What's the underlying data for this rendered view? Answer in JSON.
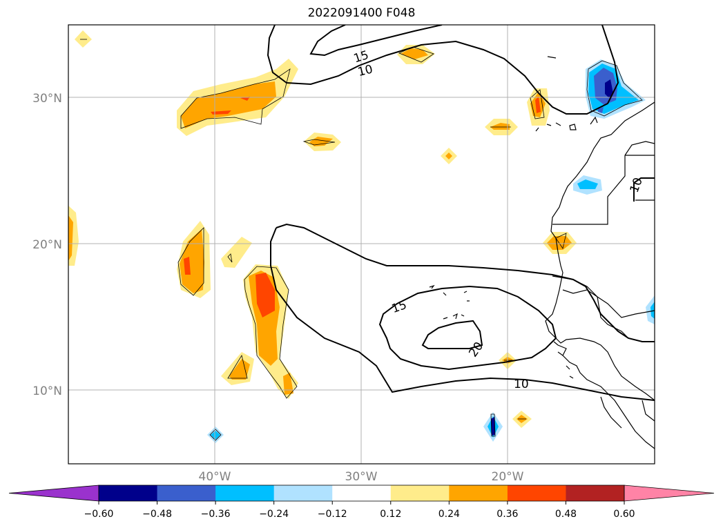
{
  "title": "2022091400 F048",
  "map": {
    "lat_labels": [
      "30°N",
      "20°N",
      "10°N"
    ],
    "lon_labels": [
      "40°W",
      "30°W",
      "20°W"
    ],
    "contour_labels": [
      "15",
      "10",
      "15",
      "20",
      "10",
      "10"
    ]
  },
  "colorbar": {
    "colors": [
      "#9a32cd",
      "#00008b",
      "#3a5fcd",
      "#00bfff",
      "#b0e2ff",
      "#ffffff",
      "#ffec8b",
      "#ffa500",
      "#ff4500",
      "#b22222",
      "#ff83a6"
    ],
    "tick_labels": [
      "−0.60",
      "−0.48",
      "−0.36",
      "−0.24",
      "−0.12",
      "0.12",
      "0.24",
      "0.36",
      "0.48",
      "0.60"
    ],
    "extend": "both"
  }
}
